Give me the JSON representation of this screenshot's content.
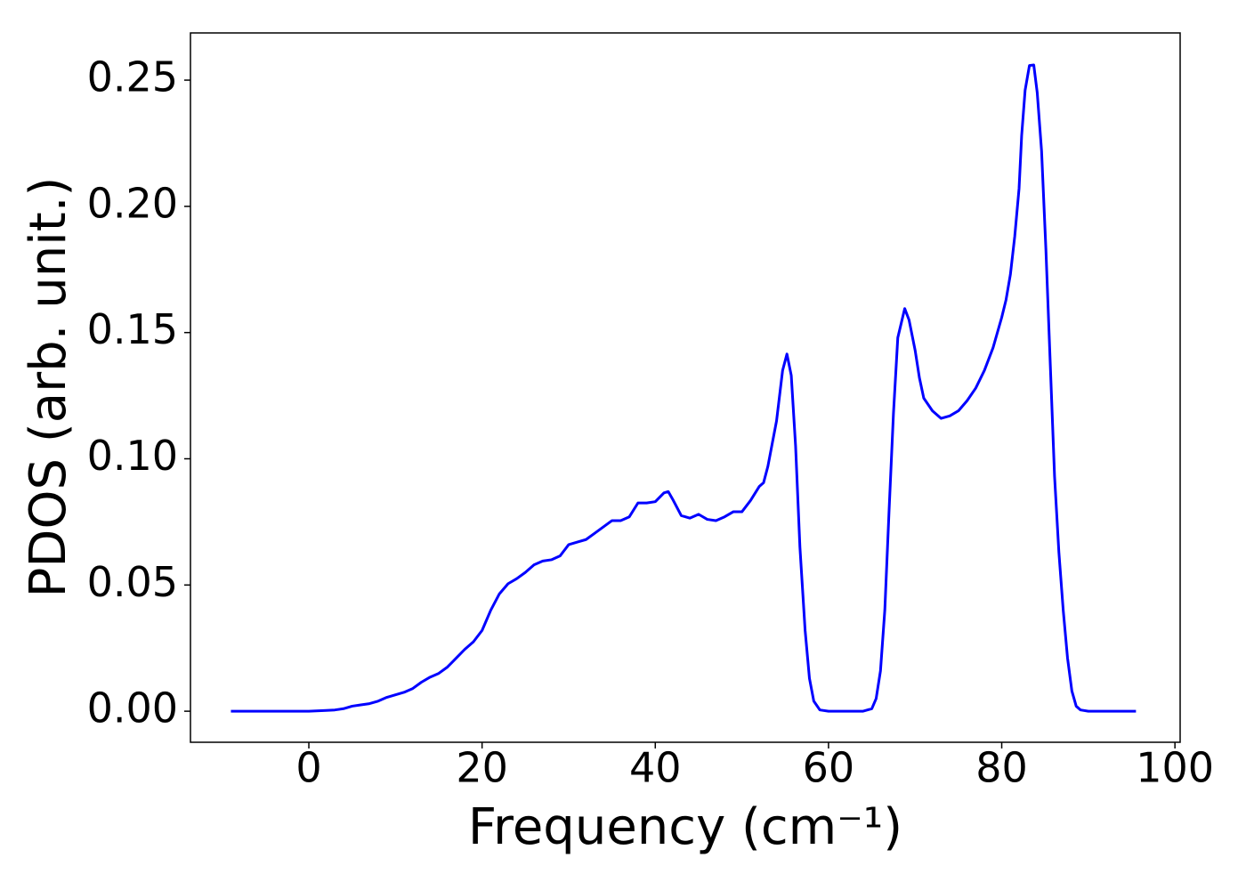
{
  "chart_data": {
    "type": "line",
    "xlabel": "Frequency (cm⁻¹)",
    "ylabel": "PDOS (arb. unit.)",
    "xlim": [
      -13.67,
      100.6
    ],
    "ylim": [
      -0.0123,
      0.2687
    ],
    "xticks": [
      0,
      20,
      40,
      60,
      80,
      100
    ],
    "yticks": [
      {
        "value": 0,
        "label": "0.00"
      },
      {
        "value": 0.05,
        "label": "0.05"
      },
      {
        "value": 0.1,
        "label": "0.10"
      },
      {
        "value": 0.15,
        "label": "0.15"
      },
      {
        "value": 0.2,
        "label": "0.20"
      },
      {
        "value": 0.25,
        "label": "0.25"
      }
    ],
    "x": [
      -9,
      -5,
      0,
      2,
      3,
      4,
      5,
      6,
      7,
      8,
      9,
      10,
      11,
      12,
      13,
      14,
      15,
      16,
      17,
      18,
      19,
      20,
      21,
      22,
      23,
      24,
      25,
      26,
      27,
      28,
      29,
      30,
      31,
      32,
      33,
      34,
      35,
      36,
      37,
      38,
      39,
      40,
      41,
      41.5,
      42,
      43,
      44,
      45,
      46,
      47,
      48,
      49,
      50,
      51,
      52,
      52.5,
      53,
      54,
      54.7,
      55.2,
      55.7,
      56.2,
      56.7,
      57.3,
      57.8,
      58.3,
      59,
      60,
      64,
      65,
      65.5,
      66,
      66.5,
      67,
      67.5,
      68,
      68.8,
      69.3,
      70,
      70.5,
      71,
      72,
      73,
      74,
      75,
      76,
      77,
      78,
      79,
      80,
      80.5,
      81,
      81.5,
      82,
      82.3,
      82.7,
      83.2,
      83.7,
      84.1,
      84.6,
      85.1,
      85.6,
      86.1,
      86.6,
      87.1,
      87.6,
      88.1,
      88.6,
      89.1,
      90,
      95.5
    ],
    "series": [
      {
        "name": "PDOS",
        "color": "#0000ff",
        "values": [
          0,
          0,
          0,
          0.0003,
          0.0005,
          0.001,
          0.002,
          0.0025,
          0.003,
          0.004,
          0.0055,
          0.0065,
          0.0075,
          0.009,
          0.0115,
          0.0135,
          0.015,
          0.0175,
          0.021,
          0.0245,
          0.0275,
          0.032,
          0.04,
          0.0465,
          0.0505,
          0.0525,
          0.055,
          0.058,
          0.0595,
          0.06,
          0.0615,
          0.066,
          0.067,
          0.068,
          0.0705,
          0.073,
          0.0755,
          0.0755,
          0.077,
          0.0825,
          0.0825,
          0.083,
          0.0865,
          0.087,
          0.084,
          0.0775,
          0.0765,
          0.078,
          0.076,
          0.0755,
          0.077,
          0.079,
          0.079,
          0.0835,
          0.089,
          0.0905,
          0.097,
          0.115,
          0.135,
          0.1415,
          0.133,
          0.105,
          0.065,
          0.032,
          0.013,
          0.004,
          0.0005,
          0,
          0,
          0.001,
          0.005,
          0.016,
          0.04,
          0.08,
          0.118,
          0.148,
          0.1595,
          0.155,
          0.143,
          0.132,
          0.124,
          0.119,
          0.116,
          0.117,
          0.119,
          0.123,
          0.128,
          0.135,
          0.144,
          0.156,
          0.163,
          0.173,
          0.188,
          0.207,
          0.228,
          0.246,
          0.2558,
          0.256,
          0.245,
          0.222,
          0.183,
          0.138,
          0.093,
          0.063,
          0.04,
          0.021,
          0.008,
          0.002,
          0.0005,
          0,
          0
        ]
      }
    ]
  }
}
